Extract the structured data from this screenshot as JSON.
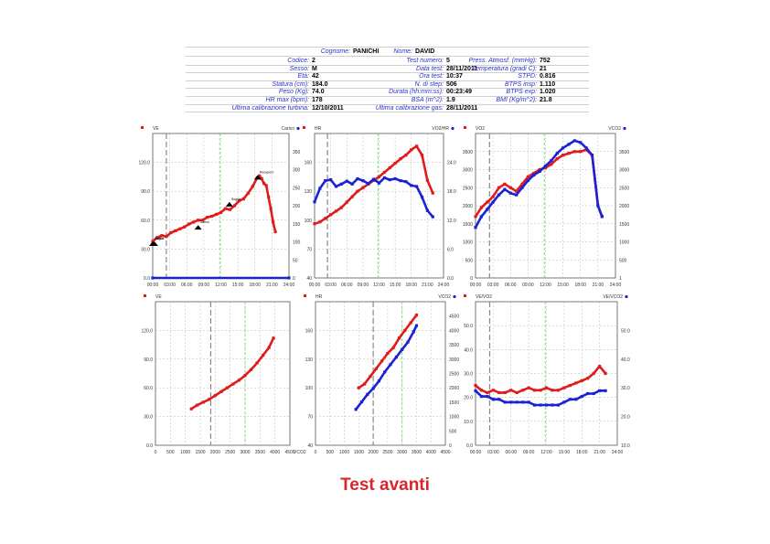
{
  "header": {
    "title_label": "Cognome:",
    "title_value": "PANICHI",
    "name_label": "Nome:",
    "name_value": "DAVID",
    "col1": [
      {
        "label": "Codice:",
        "value": "2"
      },
      {
        "label": "Sesso:",
        "value": "M"
      },
      {
        "label": "Età:",
        "value": "42"
      },
      {
        "label": "Statura (cm):",
        "value": "184.0"
      },
      {
        "label": "Peso (Kg):",
        "value": "74.0"
      },
      {
        "label": "HR max (bpm):",
        "value": "178"
      },
      {
        "label": "Ultima calibrazione turbina:",
        "value": "12/10/2011"
      }
    ],
    "col2": [
      {
        "label": "Test numero:",
        "value": "5"
      },
      {
        "label": "Data test:",
        "value": "28/11/2011"
      },
      {
        "label": "Ora test:",
        "value": "10:37"
      },
      {
        "label": "N. di step:",
        "value": "506"
      },
      {
        "label": "Durata (hh:mm:ss):",
        "value": "00:23:49"
      },
      {
        "label": "BSA (m^2):",
        "value": "1.9"
      },
      {
        "label": "Ultima calibrazione gas:",
        "value": "28/11/2011"
      }
    ],
    "col3": [
      {
        "label": "Press. Atmosf. (mmHg):",
        "value": "752"
      },
      {
        "label": "Temperatura (gradi C):",
        "value": "21"
      },
      {
        "label": "STPD:",
        "value": "0.816"
      },
      {
        "label": "BTPS insp:",
        "value": "1.110"
      },
      {
        "label": "BTPS exp:",
        "value": "1.020"
      },
      {
        "label": "BMI (Kg/m^2):",
        "value": "21.8"
      },
      {
        "label": "",
        "value": ""
      }
    ]
  },
  "footer_title": "Test avanti",
  "colors": {
    "red": "#e01b1b",
    "blue": "#1b22d6",
    "grid": "#b8b8b8",
    "axis_text": "#333333",
    "label_blue": "#2a32c8",
    "title_red": "#d8262c"
  },
  "chart_data": [
    {
      "type": "line",
      "left_label": "VE",
      "right_label": "Carico",
      "xlim": [
        0,
        24
      ],
      "xticks": [
        "00:00",
        "03:00",
        "06:00",
        "09:00",
        "12:00",
        "15:00",
        "18:00",
        "21:00",
        "24:00"
      ],
      "ylim": [
        0,
        150
      ],
      "yticks": [
        "0.0",
        "30.0",
        "60.0",
        "90.0",
        "120.0"
      ],
      "y2lim": [
        0,
        380
      ],
      "y2ticks": [
        "0",
        "50",
        "100",
        "150",
        "200",
        "250",
        "300",
        "350"
      ],
      "vlines": [
        {
          "x": 2.4,
          "style": "grey"
        },
        {
          "x": 11.8,
          "style": "green"
        }
      ],
      "series": [
        {
          "axis": "left",
          "color": "red",
          "x": [
            0,
            0.8,
            1.6,
            2.4,
            3.2,
            4.0,
            4.8,
            5.6,
            6.4,
            7.2,
            8.0,
            8.8,
            9.6,
            10.4,
            11.2,
            12.0,
            12.8,
            13.6,
            14.4,
            15.2,
            16.0,
            16.8,
            17.6,
            18.4,
            18.8,
            19.2,
            19.6,
            20.0,
            20.4,
            20.8,
            21.2,
            21.6
          ],
          "y": [
            38,
            42,
            44,
            43,
            47,
            49,
            51,
            53,
            56,
            58,
            60,
            60,
            63,
            64,
            66,
            68,
            72,
            71,
            75,
            80,
            82,
            88,
            95,
            104,
            106,
            103,
            98,
            96,
            84,
            72,
            58,
            48
          ]
        },
        {
          "axis": "right",
          "color": "blue",
          "x": [
            0,
            24
          ],
          "y": [
            0,
            0
          ]
        }
      ],
      "annotations": [
        {
          "text": "Soglia",
          "x": 0,
          "y": 37
        },
        {
          "text": "Inizio",
          "x": 0.3,
          "y": 37
        },
        {
          "text": "Carico",
          "x": 8,
          "y": 54
        },
        {
          "text": "Soglia",
          "x": 13.5,
          "y": 78
        },
        {
          "text": "Recupero",
          "x": 18.5,
          "y": 106
        }
      ]
    },
    {
      "type": "line",
      "left_label": "HR",
      "right_label": "VO2/HR",
      "xlim": [
        0,
        24
      ],
      "xticks": [
        "00:00",
        "03:00",
        "06:00",
        "09:00",
        "12:00",
        "15:00",
        "18:00",
        "21:00",
        "24:00"
      ],
      "ylim": [
        40,
        200
      ],
      "yticks": [
        "40",
        "70",
        "100",
        "130",
        "160"
      ],
      "y2lim": [
        0,
        30
      ],
      "y2ticks": [
        "0.0",
        "6.0",
        "12.0",
        "18.0",
        "24.0"
      ],
      "vlines": [
        {
          "x": 2.4,
          "style": "grey"
        },
        {
          "x": 11.8,
          "style": "green"
        }
      ],
      "series": [
        {
          "axis": "left",
          "color": "red",
          "x": [
            0,
            1,
            2,
            3,
            4,
            5,
            6,
            7,
            8,
            9,
            10,
            11,
            12,
            13,
            14,
            15,
            16,
            17,
            18,
            19,
            20,
            21,
            22
          ],
          "y": [
            100,
            102,
            106,
            110,
            114,
            118,
            124,
            130,
            136,
            140,
            144,
            148,
            152,
            157,
            162,
            167,
            172,
            176,
            182,
            186,
            176,
            148,
            134
          ]
        },
        {
          "axis": "right",
          "color": "blue",
          "x": [
            0,
            1,
            2,
            3,
            4,
            5,
            6,
            7,
            8,
            9,
            10,
            11,
            12,
            13,
            14,
            15,
            16,
            17,
            18,
            19,
            20,
            21,
            22
          ],
          "y": [
            15.8,
            18.6,
            20.2,
            20.4,
            19.0,
            19.5,
            20.1,
            19.5,
            20.6,
            20.2,
            19.6,
            20.5,
            19.7,
            20.8,
            20.4,
            20.6,
            20.2,
            20.0,
            19.2,
            19.0,
            16.8,
            14.0,
            12.7
          ]
        }
      ]
    },
    {
      "type": "line",
      "left_label": "VO2",
      "right_label": "VCO2",
      "xlim": [
        0,
        24
      ],
      "xticks": [
        "00:00",
        "03:00",
        "06:00",
        "09:00",
        "12:00",
        "15:00",
        "18:00",
        "21:00",
        "24:00"
      ],
      "ylim": [
        0,
        4000
      ],
      "yticks": [
        "0",
        "500",
        "1000",
        "1500",
        "2000",
        "2500",
        "3000",
        "3500"
      ],
      "y2lim": [
        1,
        4000
      ],
      "y2ticks": [
        "1",
        "500",
        "1000",
        "1500",
        "2000",
        "2500",
        "3000",
        "3500"
      ],
      "vlines": [
        {
          "x": 2.4,
          "style": "grey"
        },
        {
          "x": 11.8,
          "style": "green"
        }
      ],
      "series": [
        {
          "axis": "left",
          "color": "red",
          "x": [
            0,
            1,
            2,
            3,
            4,
            5,
            6,
            7,
            8,
            9,
            10,
            11,
            12,
            13,
            14,
            15,
            16,
            17,
            18,
            19,
            20,
            21,
            21.7
          ],
          "y": [
            1700,
            1950,
            2100,
            2250,
            2500,
            2600,
            2500,
            2400,
            2600,
            2800,
            2900,
            3000,
            3050,
            3150,
            3300,
            3400,
            3450,
            3500,
            3500,
            3550,
            3400,
            2000,
            1700
          ]
        },
        {
          "axis": "right",
          "color": "blue",
          "x": [
            0,
            1,
            2,
            3,
            4,
            5,
            6,
            7,
            8,
            9,
            10,
            11,
            12,
            13,
            14,
            15,
            16,
            17,
            18,
            19,
            20,
            21,
            21.7
          ],
          "y": [
            1400,
            1700,
            1900,
            2100,
            2300,
            2450,
            2350,
            2300,
            2500,
            2700,
            2850,
            2950,
            3100,
            3250,
            3450,
            3600,
            3700,
            3800,
            3750,
            3600,
            3400,
            2000,
            1700
          ]
        }
      ]
    },
    {
      "type": "scatter",
      "left_label": "VE",
      "right_label": "",
      "x_axis_label": "VCO2",
      "xlim": [
        0,
        4500
      ],
      "xticks": [
        "0",
        "500",
        "1000",
        "1500",
        "2000",
        "2500",
        "3000",
        "3500",
        "4000",
        "4500"
      ],
      "ylim": [
        0,
        150
      ],
      "yticks": [
        "0.0",
        "30.0",
        "60.0",
        "90.0",
        "120.0"
      ],
      "vlines": [
        {
          "x": 1850,
          "style": "grey"
        },
        {
          "x": 3000,
          "style": "green"
        }
      ],
      "series": [
        {
          "axis": "left",
          "color": "red",
          "x": [
            1200,
            1400,
            1600,
            1800,
            2000,
            2200,
            2400,
            2600,
            2800,
            3000,
            3200,
            3400,
            3600,
            3800,
            3950
          ],
          "y": [
            38,
            42,
            45,
            48,
            52,
            56,
            60,
            64,
            68,
            73,
            79,
            86,
            94,
            102,
            112
          ]
        }
      ]
    },
    {
      "type": "scatter",
      "left_label": "HR",
      "right_label": "VCO2",
      "xlim": [
        0,
        4500
      ],
      "xticks": [
        "0",
        "500",
        "1000",
        "1500",
        "2000",
        "2500",
        "3000",
        "3500",
        "4000",
        "4500"
      ],
      "ylim": [
        40,
        190
      ],
      "yticks": [
        "40",
        "70",
        "100",
        "130",
        "160"
      ],
      "y2lim": [
        0,
        4800
      ],
      "y2ticks": [
        "0",
        "500",
        "1000",
        "1500",
        "2000",
        "2500",
        "3000",
        "3500",
        "4000",
        "4500"
      ],
      "vlines": [
        {
          "x": 2000,
          "style": "grey"
        },
        {
          "x": 3000,
          "style": "green"
        }
      ],
      "series": [
        {
          "axis": "left",
          "color": "red",
          "x": [
            1500,
            1700,
            1900,
            2100,
            2300,
            2500,
            2700,
            2900,
            3100,
            3300,
            3500
          ],
          "y": [
            100,
            104,
            112,
            120,
            128,
            136,
            142,
            152,
            160,
            168,
            176
          ]
        },
        {
          "axis": "right",
          "color": "blue",
          "x": [
            1400,
            1600,
            1800,
            2000,
            2200,
            2400,
            2600,
            2800,
            3000,
            3200,
            3400,
            3500
          ],
          "y": [
            1200,
            1450,
            1700,
            1900,
            2150,
            2450,
            2700,
            2950,
            3200,
            3450,
            3800,
            4000
          ]
        }
      ]
    },
    {
      "type": "line",
      "left_label": "VE/VO2",
      "right_label": "VE/VCO2",
      "xlim": [
        0,
        24
      ],
      "xticks": [
        "00:00",
        "03:00",
        "06:00",
        "09:00",
        "12:00",
        "15:00",
        "18:00",
        "21:00",
        "24:00"
      ],
      "ylim": [
        0,
        60
      ],
      "yticks": [
        "0.0",
        "10.0",
        "20.0",
        "30.0",
        "40.0",
        "50.0"
      ],
      "y2lim": [
        10,
        60
      ],
      "y2ticks": [
        "10.0",
        "20.0",
        "30.0",
        "40.0",
        "50.0"
      ],
      "vlines": [
        {
          "x": 2.4,
          "style": "grey"
        },
        {
          "x": 11.8,
          "style": "green"
        }
      ],
      "series": [
        {
          "axis": "left",
          "color": "red",
          "x": [
            0,
            1,
            2,
            3,
            4,
            5,
            6,
            7,
            8,
            9,
            10,
            11,
            12,
            13,
            14,
            15,
            16,
            17,
            18,
            19,
            20,
            21,
            22
          ],
          "y": [
            25,
            23,
            22,
            23,
            22,
            22,
            23,
            22,
            23,
            24,
            23,
            23,
            24,
            23,
            23,
            24,
            25,
            26,
            27,
            28,
            30,
            33,
            30
          ]
        },
        {
          "axis": "right",
          "color": "blue",
          "x": [
            0,
            1,
            2,
            3,
            4,
            5,
            6,
            7,
            8,
            9,
            10,
            11,
            12,
            13,
            14,
            15,
            16,
            17,
            18,
            19,
            20,
            21,
            22
          ],
          "y": [
            29,
            27,
            27,
            26,
            26,
            25,
            25,
            25,
            25,
            25,
            24,
            24,
            24,
            24,
            24,
            25,
            26,
            26,
            27,
            28,
            28,
            29,
            29
          ]
        }
      ]
    }
  ]
}
